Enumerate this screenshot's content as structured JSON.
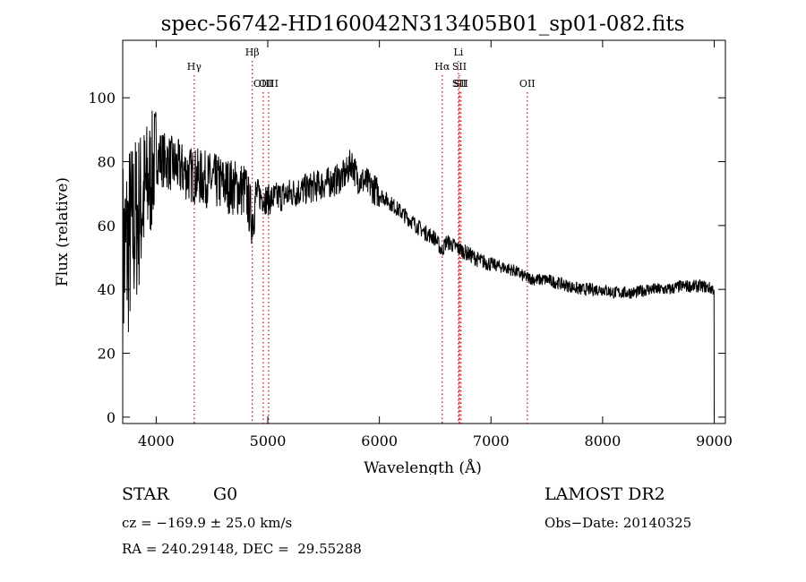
{
  "chart_data": {
    "type": "line",
    "title": "spec-56742-HD160042N313405B01_sp01-082.fits",
    "xlabel": "Wavelength (Å)",
    "ylabel": "Flux (relative)",
    "xlim": [
      3700,
      9100
    ],
    "ylim": [
      -2,
      118
    ],
    "x_ticks": [
      4000,
      5000,
      6000,
      7000,
      8000,
      9000
    ],
    "y_ticks": [
      0,
      20,
      40,
      60,
      80,
      100
    ],
    "grid": false,
    "line_color": "#000000",
    "marker_color": "#cc0000",
    "line_markers": [
      {
        "label": "Hγ",
        "wavelength": 4341,
        "label_row": 2
      },
      {
        "label": "Hβ",
        "wavelength": 4861,
        "label_row": 1
      },
      {
        "label": "OIII",
        "wavelength": 4959,
        "label_row": 3
      },
      {
        "label": "OIII",
        "wavelength": 5007,
        "label_row": 3
      },
      {
        "label": "Hα",
        "wavelength": 6563,
        "label_row": 2
      },
      {
        "label": "SII",
        "wavelength": 6716,
        "label_row": 3
      },
      {
        "label": "SII",
        "wavelength": 6731,
        "label_row": 3
      },
      {
        "label": "Li",
        "wavelength": 6708,
        "label_row": 1
      },
      {
        "label": "SII",
        "wavelength": 6717,
        "label_row": 2
      },
      {
        "label": "OII",
        "wavelength": 7325,
        "label_row": 3
      }
    ],
    "series": [
      {
        "x": [
          3700,
          3750,
          3800,
          3850,
          3900,
          3950,
          4000,
          4100,
          4200,
          4300,
          4400,
          4500,
          4600,
          4700,
          4800,
          4860,
          4900,
          5000,
          5100,
          5200,
          5300,
          5400,
          5500,
          5600,
          5700,
          5750,
          5800,
          5900,
          6000,
          6100,
          6200,
          6300,
          6400,
          6500,
          6560,
          6600,
          6700,
          6800,
          6900,
          7000,
          7100,
          7200,
          7300,
          7400,
          7500,
          7600,
          7700,
          7800,
          7900,
          8000,
          8100,
          8200,
          8300,
          8400,
          8500,
          8600,
          8700,
          8800,
          8900,
          9000
        ],
        "y": [
          48,
          55,
          60,
          65,
          70,
          75,
          82,
          80,
          78,
          76,
          75,
          74,
          73,
          72,
          71,
          62,
          70,
          68,
          69,
          70,
          71,
          72,
          73,
          74,
          76,
          80,
          75,
          73,
          70,
          67,
          64,
          61,
          58,
          56,
          52,
          55,
          53,
          51,
          49,
          48,
          47,
          46,
          44,
          43,
          43,
          42,
          41,
          40,
          40,
          40,
          39,
          39,
          39,
          40,
          40,
          40,
          41,
          41,
          41,
          40
        ]
      }
    ]
  },
  "footer": {
    "object_type": "STAR",
    "subclass": "G0",
    "survey": "LAMOST DR2",
    "redshift": "cz = −169.9 ± 25.0 km/s",
    "obs_date": "Obs−Date: 20140325",
    "coordinates": "RA = 240.29148, DEC =  29.55288"
  }
}
